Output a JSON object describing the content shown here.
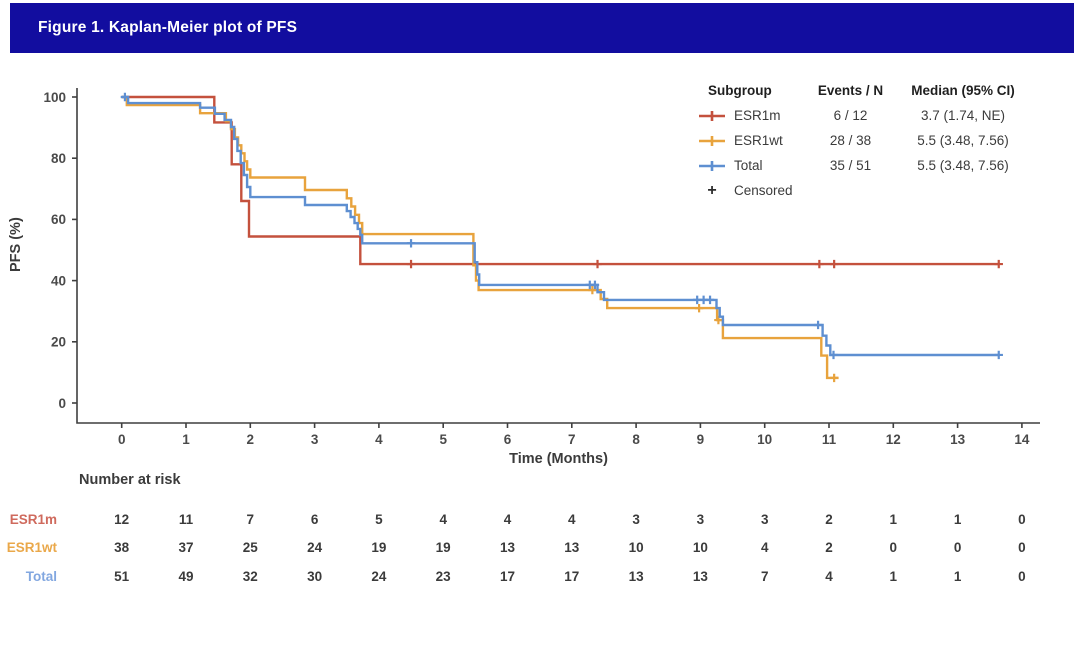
{
  "header": {
    "title": "Figure 1. Kaplan-Meier plot of PFS",
    "bar_color": "#120d9f",
    "text_color": "#ffffff"
  },
  "chart_data": {
    "type": "line",
    "subtype": "kaplan-meier-step",
    "xlabel": "Time (Months)",
    "ylabel": "PFS (%)",
    "xlim": [
      0,
      14
    ],
    "ylim": [
      0,
      100
    ],
    "x_ticks": [
      0,
      1,
      2,
      3,
      4,
      5,
      6,
      7,
      8,
      9,
      10,
      11,
      12,
      13,
      14
    ],
    "y_ticks": [
      0,
      20,
      40,
      60,
      80,
      100
    ],
    "grid": false,
    "axis_color": "#3f3f3f",
    "tick_label_color": "#4a4a4a",
    "legend": {
      "position": "top-right",
      "headers": [
        "Subgroup",
        "Events / N",
        "Median (95% CI)"
      ],
      "rows": [
        {
          "name": "ESR1m",
          "events_n": "6 / 12",
          "median": "3.7 (1.74, NE)",
          "color": "#c4513d"
        },
        {
          "name": "ESR1wt",
          "events_n": "28 / 38",
          "median": "5.5 (3.48, 7.56)",
          "color": "#e8a33d"
        },
        {
          "name": "Total",
          "events_n": "35 / 51",
          "median": "5.5 (3.48, 7.56)",
          "color": "#5e8fd1"
        }
      ],
      "censored_label": "Censored",
      "censored_symbol": "+"
    },
    "series": [
      {
        "name": "ESR1m",
        "color": "#c4513d",
        "end": 13.64,
        "steps": [
          [
            0,
            100
          ],
          [
            1.44,
            91.7
          ],
          [
            1.71,
            78
          ],
          [
            1.86,
            66
          ],
          [
            1.98,
            54.4
          ],
          [
            3.71,
            45.4
          ]
        ],
        "censors": [
          [
            4.5,
            45.4
          ],
          [
            7.4,
            45.4
          ],
          [
            10.85,
            45.4
          ],
          [
            11.08,
            45.4
          ],
          [
            13.64,
            45.4
          ]
        ]
      },
      {
        "name": "ESR1wt",
        "color": "#e8a33d",
        "end": 11.15,
        "steps": [
          [
            0,
            100
          ],
          [
            0.08,
            97.4
          ],
          [
            1.22,
            94.7
          ],
          [
            1.62,
            92.1
          ],
          [
            1.7,
            89.5
          ],
          [
            1.76,
            86.8
          ],
          [
            1.81,
            84.2
          ],
          [
            1.86,
            81.6
          ],
          [
            1.91,
            79.0
          ],
          [
            1.95,
            76.3
          ],
          [
            2.0,
            73.7
          ],
          [
            2.85,
            69.6
          ],
          [
            3.5,
            66.9
          ],
          [
            3.57,
            64.2
          ],
          [
            3.63,
            61.5
          ],
          [
            3.69,
            58.8
          ],
          [
            3.74,
            55.2
          ],
          [
            5.47,
            45.0
          ],
          [
            5.51,
            40.0
          ],
          [
            5.55,
            36.9
          ],
          [
            7.45,
            34.0
          ],
          [
            7.55,
            31.0
          ],
          [
            9.26,
            27.1
          ],
          [
            9.35,
            21.2
          ],
          [
            10.88,
            15.5
          ],
          [
            10.97,
            8.2
          ]
        ],
        "censors": [
          [
            7.32,
            36.9
          ],
          [
            8.98,
            31.0
          ],
          [
            9.28,
            27.1
          ],
          [
            11.08,
            8.2
          ]
        ]
      },
      {
        "name": "Total",
        "color": "#5e8fd1",
        "end": 13.64,
        "steps": [
          [
            0,
            100
          ],
          [
            0.1,
            98.0
          ],
          [
            1.22,
            96.5
          ],
          [
            1.45,
            94.5
          ],
          [
            1.6,
            92.5
          ],
          [
            1.7,
            90.2
          ],
          [
            1.75,
            86.3
          ],
          [
            1.8,
            82.4
          ],
          [
            1.85,
            78.4
          ],
          [
            1.9,
            74.5
          ],
          [
            1.95,
            70.6
          ],
          [
            2.0,
            67.3
          ],
          [
            2.85,
            64.7
          ],
          [
            3.5,
            62.7
          ],
          [
            3.56,
            60.8
          ],
          [
            3.62,
            58.8
          ],
          [
            3.67,
            56.9
          ],
          [
            3.71,
            54.9
          ],
          [
            3.74,
            52.2
          ],
          [
            5.49,
            46.0
          ],
          [
            5.53,
            42.0
          ],
          [
            5.56,
            38.6
          ],
          [
            7.4,
            36.2
          ],
          [
            7.5,
            33.7
          ],
          [
            9.25,
            31.0
          ],
          [
            9.3,
            28.2
          ],
          [
            9.35,
            25.5
          ],
          [
            10.9,
            22.0
          ],
          [
            10.96,
            18.8
          ],
          [
            11.02,
            15.7
          ]
        ],
        "censors": [
          [
            0.05,
            100
          ],
          [
            4.5,
            52.2
          ],
          [
            7.28,
            38.6
          ],
          [
            7.36,
            38.6
          ],
          [
            8.95,
            33.7
          ],
          [
            9.05,
            33.7
          ],
          [
            9.15,
            33.7
          ],
          [
            10.83,
            25.5
          ],
          [
            11.07,
            15.7
          ],
          [
            13.64,
            15.7
          ]
        ]
      }
    ],
    "number_at_risk": {
      "label": "Number at risk",
      "times": [
        0,
        1,
        2,
        3,
        4,
        5,
        6,
        7,
        8,
        9,
        10,
        11,
        12,
        13,
        14
      ],
      "value_color": "#3b3b3b",
      "rows": [
        {
          "name": "ESR1m",
          "label_color": "#cf6a5d",
          "values": [
            12,
            11,
            7,
            6,
            5,
            4,
            4,
            4,
            3,
            3,
            3,
            2,
            1,
            1,
            0
          ]
        },
        {
          "name": "ESR1wt",
          "label_color": "#eaa84a",
          "values": [
            38,
            37,
            25,
            24,
            19,
            19,
            13,
            13,
            10,
            10,
            4,
            2,
            0,
            0,
            0
          ]
        },
        {
          "name": "Total",
          "label_color": "#82a7e0",
          "values": [
            51,
            49,
            32,
            30,
            24,
            23,
            17,
            17,
            13,
            13,
            7,
            4,
            1,
            1,
            0
          ]
        }
      ]
    }
  }
}
